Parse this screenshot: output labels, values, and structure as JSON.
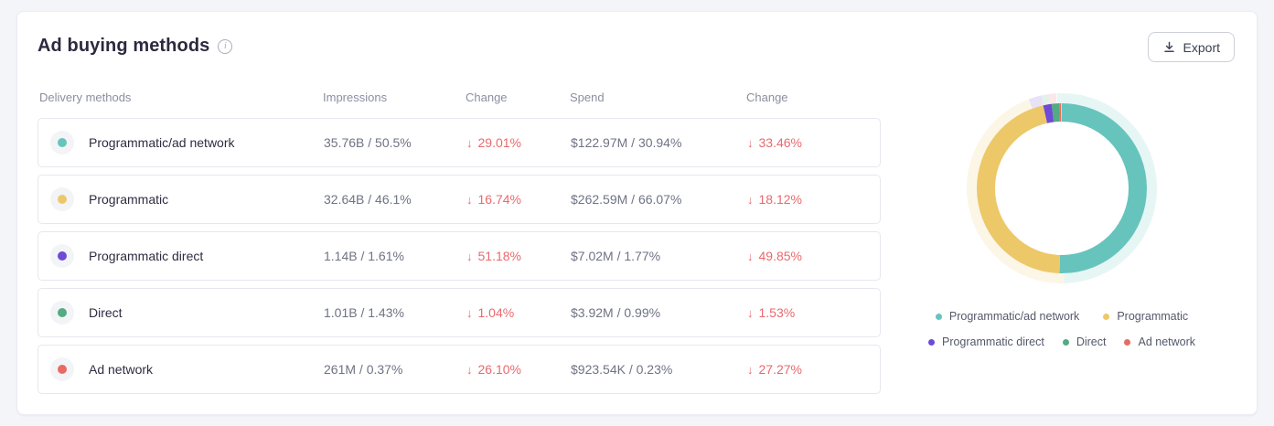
{
  "card": {
    "title": "Ad buying methods",
    "export_button": "Export"
  },
  "icons": {
    "info": "i",
    "down_arrow": "↓"
  },
  "colors": {
    "negative_change": "#E9696D",
    "background": "#F4F5F8",
    "card_border": "#ECEDF2"
  },
  "table": {
    "columns": {
      "delivery": "Delivery methods",
      "impressions": "Impressions",
      "impressions_change": "Change",
      "spend": "Spend",
      "spend_change": "Change"
    },
    "rows": [
      {
        "label": "Programmatic/ad network",
        "color": "#66C4BC",
        "impressions": "35.76B / 50.5%",
        "impressions_change": "29.01%",
        "spend": "$122.97M / 30.94%",
        "spend_change": "33.46%"
      },
      {
        "label": "Programmatic",
        "color": "#ECC869",
        "impressions": "32.64B / 46.1%",
        "impressions_change": "16.74%",
        "spend": "$262.59M / 66.07%",
        "spend_change": "18.12%"
      },
      {
        "label": "Programmatic direct",
        "color": "#6E4AD5",
        "impressions": "1.14B / 1.61%",
        "impressions_change": "51.18%",
        "spend": "$7.02M / 1.77%",
        "spend_change": "49.85%"
      },
      {
        "label": "Direct",
        "color": "#52AB82",
        "impressions": "1.01B / 1.43%",
        "impressions_change": "1.04%",
        "spend": "$3.92M / 0.99%",
        "spend_change": "1.53%"
      },
      {
        "label": "Ad network",
        "color": "#E96A62",
        "impressions": "261M / 0.37%",
        "impressions_change": "26.10%",
        "spend": "$923.54K / 0.23%",
        "spend_change": "27.27%"
      }
    ]
  },
  "chart_data": {
    "type": "pie",
    "subtype": "donut",
    "title": "Ad buying methods",
    "value_basis": "Impressions share (%)",
    "series": [
      {
        "name": "Programmatic/ad network",
        "value": 50.5,
        "color": "#66C4BC"
      },
      {
        "name": "Programmatic",
        "value": 46.1,
        "color": "#ECC869"
      },
      {
        "name": "Programmatic direct",
        "value": 1.61,
        "color": "#6E4AD5"
      },
      {
        "name": "Direct",
        "value": 1.43,
        "color": "#52AB82"
      },
      {
        "name": "Ad network",
        "value": 0.37,
        "color": "#E96A62"
      }
    ],
    "halo_ring": {
      "values": [
        50.5,
        44.8,
        2.2,
        1.2,
        1.3
      ],
      "opacity": 0.16,
      "rotation_deg": -3
    },
    "legend_position": "bottom"
  },
  "legend": {
    "items": [
      {
        "label": "Programmatic/ad network",
        "color": "#66C4BC"
      },
      {
        "label": "Programmatic",
        "color": "#ECC869"
      },
      {
        "label": "Programmatic direct",
        "color": "#6E4AD5"
      },
      {
        "label": "Direct",
        "color": "#52AB82"
      },
      {
        "label": "Ad network",
        "color": "#E96A62"
      }
    ]
  }
}
